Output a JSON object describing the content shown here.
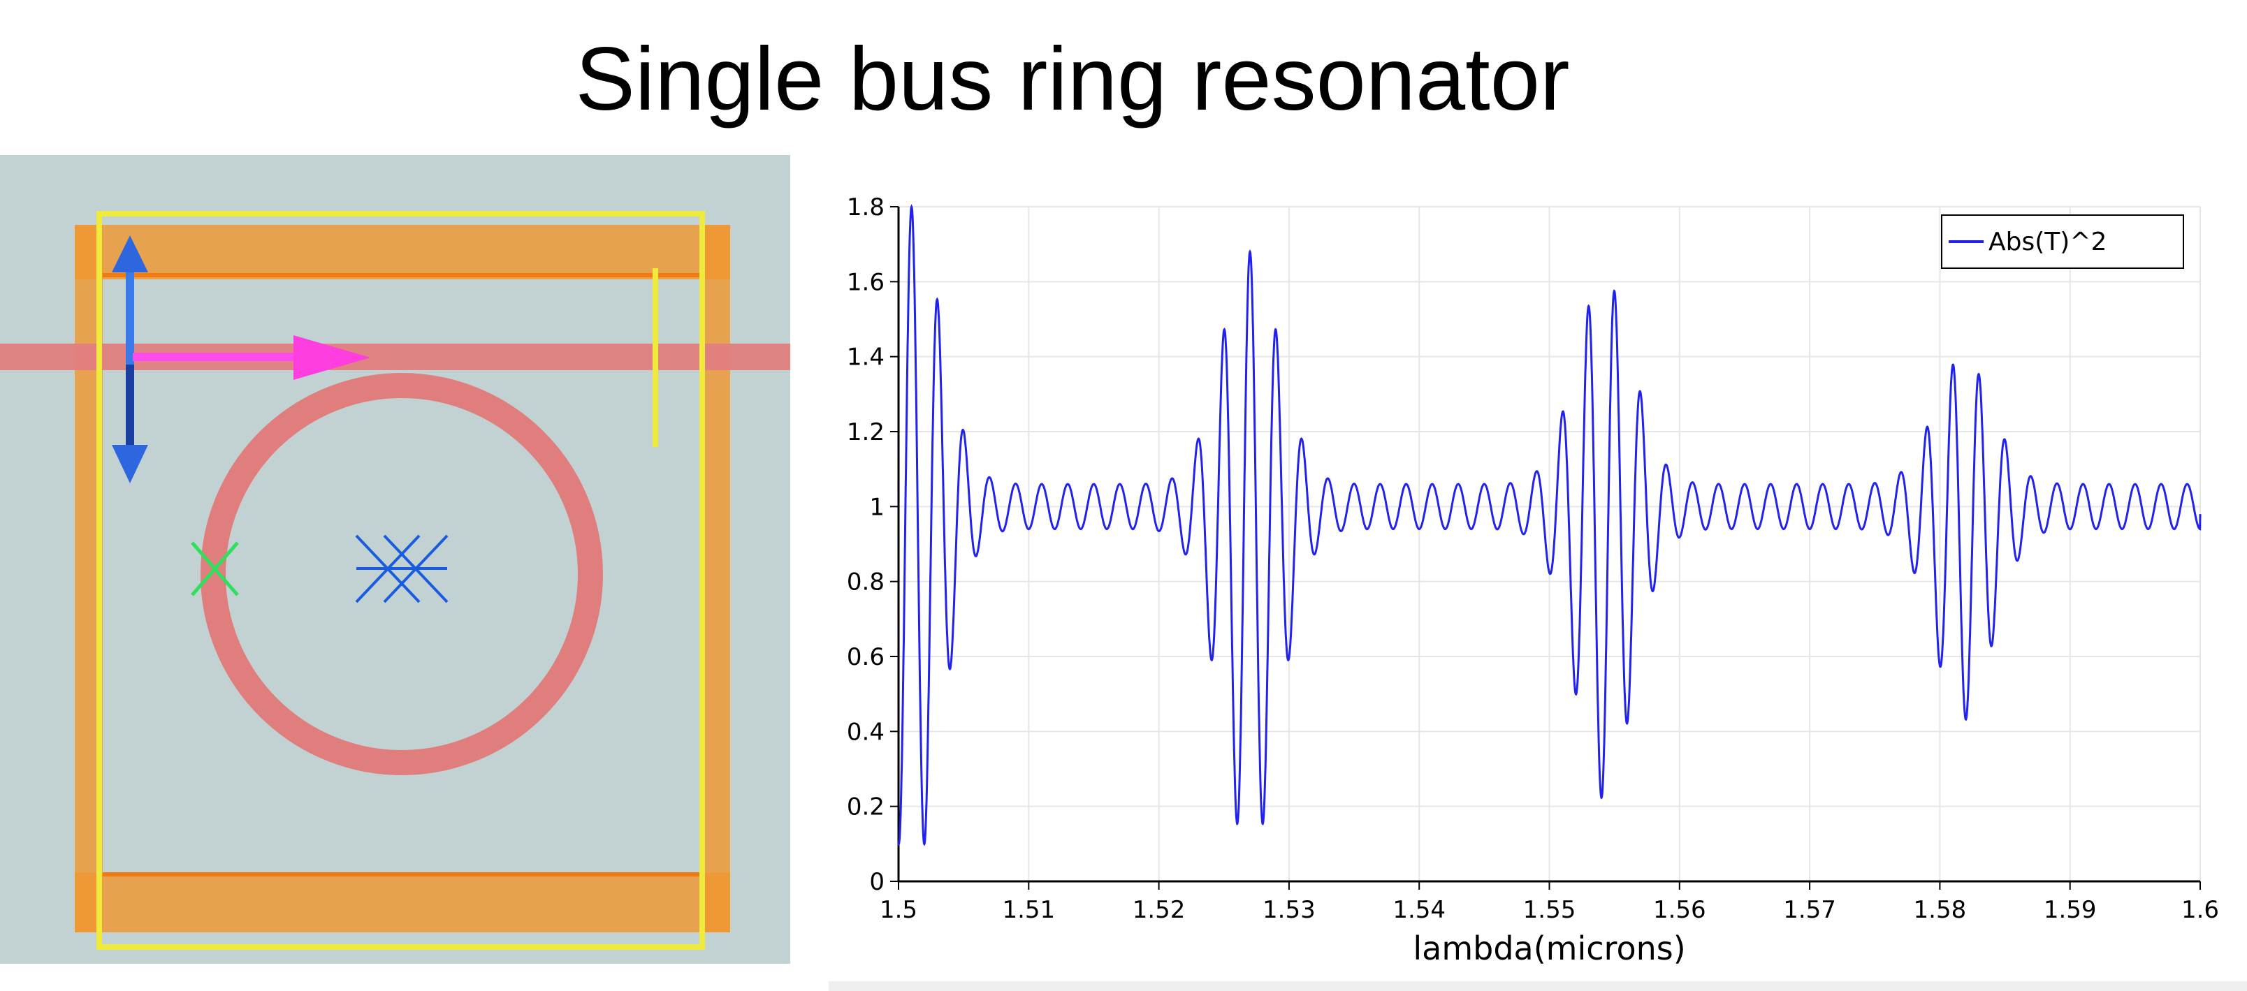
{
  "slide": {
    "title": "Single bus ring resonator"
  },
  "layout_view": {
    "colors": {
      "background": "#c2d1d2",
      "waveguide": "#e07e7e",
      "frame": "#f0962f",
      "outline": "#f0ea3c",
      "port_arrow": "#ff3ee0",
      "source_arrow": "#3a6fe0",
      "monitor_marks": "#1a5ce0",
      "ring_marker": "#2ee05e"
    },
    "icons": [
      "ring-waveguide",
      "bus-waveguide",
      "simulation-frame",
      "port-arrow-icon",
      "source-arrow-icon",
      "monitor-cross-icon",
      "ring-marker-icon"
    ]
  },
  "chart_data": {
    "type": "line",
    "xlabel": "lambda(microns)",
    "ylabel": "",
    "xlim": [
      1.5,
      1.6
    ],
    "ylim": [
      0,
      1.8
    ],
    "xticks": [
      "1.5",
      "1.51",
      "1.52",
      "1.53",
      "1.54",
      "1.55",
      "1.56",
      "1.57",
      "1.58",
      "1.59",
      "1.6"
    ],
    "yticks": [
      "0",
      "0.2",
      "0.4",
      "0.6",
      "0.8",
      "1",
      "1.2",
      "1.4",
      "1.6",
      "1.8"
    ],
    "grid": true,
    "legend_position": "top-right",
    "series": [
      {
        "name": "Abs(T)^2",
        "color": "#2222ee",
        "fsr": 0.002,
        "resonances": [
          {
            "x": 1.501,
            "ymin": 0.01,
            "ymax": 1.8
          },
          {
            "x": 1.527,
            "ymin": 0.07,
            "ymax": 1.68
          },
          {
            "x": 1.5542,
            "ymin": 0.22,
            "ymax": 1.61
          },
          {
            "x": 1.5818,
            "ymin": 0.43,
            "ymax": 1.4
          }
        ],
        "baseline": 1.0,
        "ripple_amplitude": 0.06,
        "end_value": 0.98
      }
    ]
  }
}
